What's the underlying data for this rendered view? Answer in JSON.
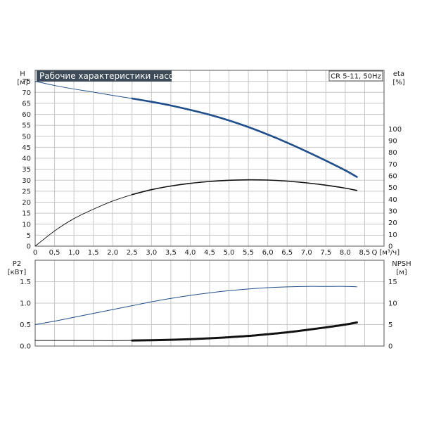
{
  "chart_data": [
    {
      "type": "line",
      "title": "Рабочие характеристики насоса",
      "model": "CR 5-11, 50Hz",
      "y_label_left": "H",
      "y_unit_left": "[м]",
      "y_label_right": "eta",
      "y_unit_right": "[%]",
      "x_label": "Q [м³/ч]",
      "x_ticks": [
        "0",
        "0.5",
        "1.0",
        "1.5",
        "2.0",
        "2.5",
        "3.0",
        "3.5",
        "4.0",
        "4.5",
        "5.0",
        "5.5",
        "6.0",
        "6.5",
        "7.0",
        "7.5",
        "8.0",
        "8.5"
      ],
      "y_ticks_left": [
        "0",
        "5",
        "10",
        "15",
        "20",
        "25",
        "30",
        "35",
        "40",
        "45",
        "50",
        "55",
        "60",
        "65",
        "70",
        "75"
      ],
      "y_ticks_right": [
        "0",
        "10",
        "20",
        "30",
        "40",
        "50",
        "60",
        "70",
        "80",
        "90",
        "100"
      ],
      "xlim": [
        0,
        9
      ],
      "ylim_left": [
        0,
        80
      ],
      "ylim_right": [
        0,
        150
      ],
      "grid": true,
      "series": [
        {
          "axis": "left",
          "color": "#1f4e8c",
          "points": [
            [
              0,
              75
            ],
            [
              0.5,
              73.1
            ],
            [
              1,
              71.5
            ],
            [
              1.5,
              70.1
            ],
            [
              2,
              68.6
            ],
            [
              2.5,
              67.2
            ],
            [
              3,
              65.7
            ],
            [
              3.5,
              64
            ],
            [
              4,
              62
            ],
            [
              4.5,
              59.8
            ],
            [
              5,
              57.2
            ],
            [
              5.5,
              54.2
            ],
            [
              6,
              50.8
            ],
            [
              6.5,
              47.1
            ],
            [
              7,
              43.1
            ],
            [
              7.5,
              38.9
            ],
            [
              8,
              34.5
            ],
            [
              8.3,
              31.5
            ]
          ],
          "bold_from_x": 2.5
        },
        {
          "axis": "right",
          "color": "#111111",
          "points": [
            [
              0,
              0
            ],
            [
              0.5,
              13
            ],
            [
              1,
              23.5
            ],
            [
              1.5,
              31.5
            ],
            [
              2,
              38.5
            ],
            [
              2.5,
              44
            ],
            [
              3,
              48.2
            ],
            [
              3.5,
              51.3
            ],
            [
              4,
              53.6
            ],
            [
              4.5,
              55.2
            ],
            [
              5,
              56.2
            ],
            [
              5.5,
              56.6
            ],
            [
              6,
              56.4
            ],
            [
              6.5,
              55.5
            ],
            [
              7,
              54
            ],
            [
              7.5,
              52
            ],
            [
              8,
              49.5
            ],
            [
              8.3,
              47.5
            ]
          ],
          "bold_from_x": 2.5
        }
      ]
    },
    {
      "type": "line",
      "y_label_left": "P2",
      "y_unit_left": "[кВт]",
      "y_label_right": "NPSH",
      "y_unit_right": "[м]",
      "y_ticks_left": [
        "0.0",
        "0.5",
        "1.0",
        "1.5"
      ],
      "y_ticks_right": [
        "0",
        "5",
        "10",
        "15"
      ],
      "xlim": [
        0,
        9
      ],
      "ylim_left": [
        0,
        2.0
      ],
      "ylim_right": [
        0,
        20
      ],
      "grid": true,
      "series": [
        {
          "axis": "left",
          "color": "#1f4e8c",
          "points": [
            [
              0,
              0.5
            ],
            [
              0.5,
              0.58
            ],
            [
              1,
              0.67
            ],
            [
              1.5,
              0.76
            ],
            [
              2,
              0.85
            ],
            [
              2.5,
              0.94
            ],
            [
              3,
              1.03
            ],
            [
              3.5,
              1.11
            ],
            [
              4,
              1.18
            ],
            [
              4.5,
              1.24
            ],
            [
              5,
              1.29
            ],
            [
              5.5,
              1.33
            ],
            [
              6,
              1.36
            ],
            [
              6.5,
              1.38
            ],
            [
              7,
              1.39
            ],
            [
              7.5,
              1.39
            ],
            [
              8,
              1.39
            ],
            [
              8.3,
              1.38
            ]
          ],
          "bold_from_x": null
        },
        {
          "axis": "right",
          "color": "#111111",
          "points": [
            [
              0,
              1.3
            ],
            [
              0.5,
              1.3
            ],
            [
              1,
              1.3
            ],
            [
              1.5,
              1.28
            ],
            [
              2,
              1.25
            ],
            [
              2.5,
              1.3
            ],
            [
              3,
              1.35
            ],
            [
              3.5,
              1.45
            ],
            [
              4,
              1.6
            ],
            [
              4.5,
              1.8
            ],
            [
              5,
              2.05
            ],
            [
              5.5,
              2.35
            ],
            [
              6,
              2.75
            ],
            [
              6.5,
              3.2
            ],
            [
              7,
              3.75
            ],
            [
              7.5,
              4.35
            ],
            [
              8,
              5
            ],
            [
              8.3,
              5.5
            ]
          ],
          "bold_from_x": 2.5
        }
      ]
    }
  ]
}
